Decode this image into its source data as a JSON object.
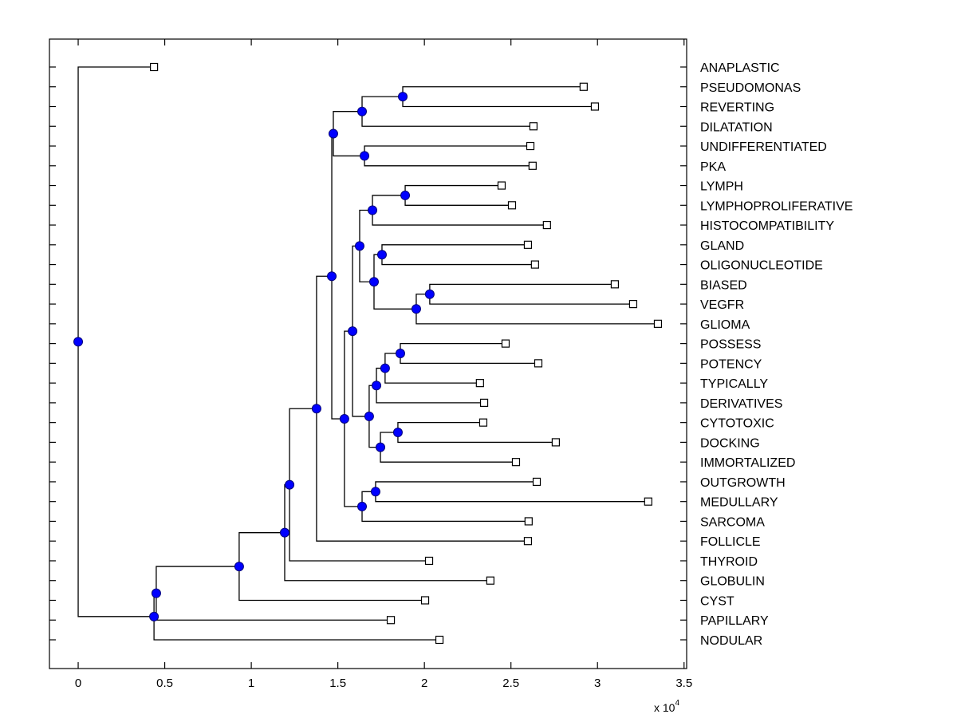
{
  "chart_data": {
    "type": "dendrogram",
    "title": "",
    "xlabel": "",
    "ylabel": "",
    "x_multiplier_label": "x 10",
    "x_multiplier_exponent": "4",
    "xlim": [
      -0.166,
      3.515
    ],
    "x_ticks": [
      0,
      0.5,
      1,
      1.5,
      2,
      2.5,
      3,
      3.5
    ],
    "x_tick_labels": [
      "0",
      "0.5",
      "1",
      "1.5",
      "2",
      "2.5",
      "3",
      "3.5"
    ],
    "grid": false,
    "colors": {
      "node_fill": "#0000ff",
      "leaf_fill": "#ffffff",
      "line": "#000000"
    },
    "leaves": [
      {
        "id": "L1",
        "label": "ANAPLASTIC",
        "x": 0.438
      },
      {
        "id": "L2",
        "label": "PSEUDOMONAS",
        "x": 2.92
      },
      {
        "id": "L3",
        "label": "REVERTING",
        "x": 2.985
      },
      {
        "id": "L4",
        "label": "DILATATION",
        "x": 2.63
      },
      {
        "id": "L5",
        "label": "UNDIFFERENTIATED",
        "x": 2.612
      },
      {
        "id": "L6",
        "label": "PKA",
        "x": 2.625
      },
      {
        "id": "L7",
        "label": "LYMPH",
        "x": 2.446
      },
      {
        "id": "L8",
        "label": "LYMPHOPROLIFERATIVE",
        "x": 2.506
      },
      {
        "id": "L9",
        "label": "HISTOCOMPATIBILITY",
        "x": 2.708
      },
      {
        "id": "L10",
        "label": "GLAND",
        "x": 2.598
      },
      {
        "id": "L11",
        "label": "OLIGONUCLEOTIDE",
        "x": 2.639
      },
      {
        "id": "L12",
        "label": "BIASED",
        "x": 3.1
      },
      {
        "id": "L13",
        "label": "VEGFR",
        "x": 3.206
      },
      {
        "id": "L14",
        "label": "GLIOMA",
        "x": 3.349
      },
      {
        "id": "L15",
        "label": "POSSESS",
        "x": 2.469
      },
      {
        "id": "L16",
        "label": "POTENCY",
        "x": 2.658
      },
      {
        "id": "L17",
        "label": "TYPICALLY",
        "x": 2.321
      },
      {
        "id": "L18",
        "label": "DERIVATIVES",
        "x": 2.345
      },
      {
        "id": "L19",
        "label": "CYTOTOXIC",
        "x": 2.34
      },
      {
        "id": "L20",
        "label": "DOCKING",
        "x": 2.759
      },
      {
        "id": "L21",
        "label": "IMMORTALIZED",
        "x": 2.529
      },
      {
        "id": "L22",
        "label": "OUTGROWTH",
        "x": 2.649
      },
      {
        "id": "L23",
        "label": "MEDULLARY",
        "x": 3.293
      },
      {
        "id": "L24",
        "label": "SARCOMA",
        "x": 2.602
      },
      {
        "id": "L25",
        "label": "FOLLICLE",
        "x": 2.598
      },
      {
        "id": "L26",
        "label": "THYROID",
        "x": 2.027
      },
      {
        "id": "L27",
        "label": "GLOBULIN",
        "x": 2.381
      },
      {
        "id": "L28",
        "label": "CYST",
        "x": 2.004
      },
      {
        "id": "L29",
        "label": "PAPILLARY",
        "x": 1.806
      },
      {
        "id": "L30",
        "label": "NODULAR",
        "x": 2.087
      }
    ],
    "internal_nodes": [
      {
        "id": "N1",
        "x": 0.0,
        "children": [
          "L1",
          "N2"
        ]
      },
      {
        "id": "N2",
        "x": 0.438,
        "children": [
          "N3",
          "L30"
        ]
      },
      {
        "id": "N3",
        "x": 0.451,
        "children": [
          "N4",
          "L29"
        ]
      },
      {
        "id": "N4",
        "x": 0.93,
        "children": [
          "N5",
          "L28"
        ]
      },
      {
        "id": "N5",
        "x": 1.193,
        "children": [
          "N6",
          "L27"
        ]
      },
      {
        "id": "N6",
        "x": 1.221,
        "children": [
          "N7",
          "L26"
        ]
      },
      {
        "id": "N7",
        "x": 1.377,
        "children": [
          "N8",
          "L25"
        ]
      },
      {
        "id": "N8",
        "x": 1.465,
        "children": [
          "N9",
          "N14"
        ]
      },
      {
        "id": "N9",
        "x": 1.474,
        "children": [
          "N10",
          "N12"
        ]
      },
      {
        "id": "N10",
        "x": 1.64,
        "children": [
          "N11",
          "L4"
        ]
      },
      {
        "id": "N11",
        "x": 1.875,
        "children": [
          "L2",
          "L3"
        ]
      },
      {
        "id": "N12",
        "x": 1.654,
        "children": [
          "L5",
          "L6"
        ]
      },
      {
        "id": "N14",
        "x": 1.538,
        "children": [
          "N15",
          "N27"
        ]
      },
      {
        "id": "N15",
        "x": 1.585,
        "children": [
          "N16",
          "N22"
        ]
      },
      {
        "id": "N16",
        "x": 1.626,
        "children": [
          "N17",
          "N18"
        ]
      },
      {
        "id": "N17",
        "x": 1.7,
        "children": [
          "N17a",
          "L9"
        ]
      },
      {
        "id": "N17a",
        "x": 1.889,
        "children": [
          "L7",
          "L8"
        ]
      },
      {
        "id": "N18",
        "x": 1.709,
        "children": [
          "N19",
          "N20"
        ]
      },
      {
        "id": "N19",
        "x": 1.755,
        "children": [
          "L10",
          "L11"
        ]
      },
      {
        "id": "N20",
        "x": 1.953,
        "children": [
          "N21",
          "L14"
        ]
      },
      {
        "id": "N21",
        "x": 2.031,
        "children": [
          "L12",
          "L13"
        ]
      },
      {
        "id": "N22",
        "x": 1.681,
        "children": [
          "N23",
          "N25"
        ]
      },
      {
        "id": "N23",
        "x": 1.723,
        "children": [
          "N24",
          "L18"
        ]
      },
      {
        "id": "N24",
        "x": 1.773,
        "children": [
          "N24a",
          "L17"
        ]
      },
      {
        "id": "N24a",
        "x": 1.861,
        "children": [
          "L15",
          "L16"
        ]
      },
      {
        "id": "N25",
        "x": 1.746,
        "children": [
          "N26",
          "L21"
        ]
      },
      {
        "id": "N26",
        "x": 1.847,
        "children": [
          "L19",
          "L20"
        ]
      },
      {
        "id": "N27",
        "x": 1.64,
        "children": [
          "N28",
          "L24"
        ]
      },
      {
        "id": "N28",
        "x": 1.718,
        "children": [
          "L22",
          "L23"
        ]
      }
    ],
    "root": "N1"
  }
}
